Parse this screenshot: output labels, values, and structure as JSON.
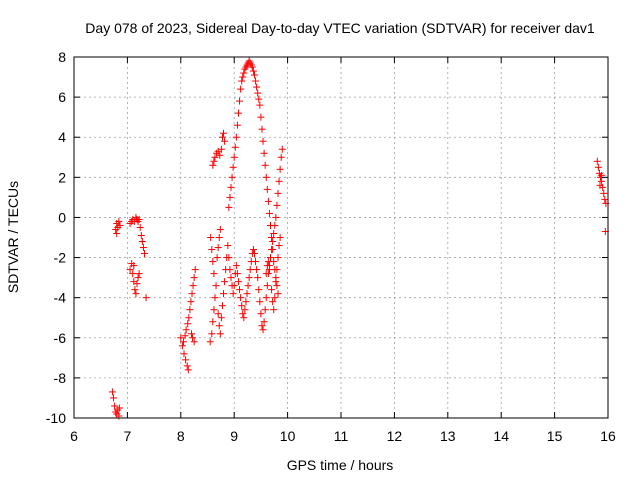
{
  "chart_data": {
    "type": "scatter",
    "title": "Day 078 of 2023, Sidereal Day-to-day VTEC variation (SDTVAR) for receiver dav1",
    "xlabel": "GPS time / hours",
    "ylabel": "SDTVAR / TECUs",
    "xlim": [
      6,
      16
    ],
    "ylim": [
      -10,
      8
    ],
    "xticks": [
      6,
      7,
      8,
      9,
      10,
      11,
      12,
      13,
      14,
      15,
      16
    ],
    "yticks": [
      -10,
      -8,
      -6,
      -4,
      -2,
      0,
      2,
      4,
      6,
      8
    ],
    "grid": true,
    "marker": "+",
    "series": [
      {
        "name": "SDTVAR",
        "color": "#ff0000",
        "points": [
          [
            6.72,
            -8.7
          ],
          [
            6.74,
            -9.0
          ],
          [
            6.76,
            -9.4
          ],
          [
            6.78,
            -9.7
          ],
          [
            6.8,
            -9.8
          ],
          [
            6.82,
            -9.6
          ],
          [
            6.84,
            -9.9
          ],
          [
            6.85,
            -9.5
          ],
          [
            6.78,
            -0.6
          ],
          [
            6.8,
            -0.3
          ],
          [
            6.82,
            -0.5
          ],
          [
            6.84,
            -0.2
          ],
          [
            6.86,
            -0.4
          ],
          [
            6.8,
            -0.8
          ],
          [
            7.05,
            -0.3
          ],
          [
            7.08,
            -0.2
          ],
          [
            7.1,
            -0.1
          ],
          [
            7.13,
            -0.2
          ],
          [
            7.16,
            0.0
          ],
          [
            7.18,
            -0.1
          ],
          [
            7.2,
            -0.2
          ],
          [
            7.22,
            -0.1
          ],
          [
            7.05,
            -2.6
          ],
          [
            7.08,
            -2.3
          ],
          [
            7.1,
            -2.8
          ],
          [
            7.12,
            -3.2
          ],
          [
            7.14,
            -3.6
          ],
          [
            7.16,
            -3.8
          ],
          [
            7.18,
            -3.3
          ],
          [
            7.2,
            -3.0
          ],
          [
            7.22,
            -2.8
          ],
          [
            7.12,
            -2.4
          ],
          [
            7.24,
            -0.5
          ],
          [
            7.26,
            -0.9
          ],
          [
            7.28,
            -1.2
          ],
          [
            7.3,
            -1.5
          ],
          [
            7.32,
            -1.8
          ],
          [
            7.35,
            -4.0
          ],
          [
            8.0,
            -6.0
          ],
          [
            8.03,
            -6.4
          ],
          [
            8.06,
            -6.8
          ],
          [
            8.09,
            -7.1
          ],
          [
            8.12,
            -7.4
          ],
          [
            8.14,
            -7.6
          ],
          [
            8.05,
            -6.2
          ],
          [
            8.08,
            -5.9
          ],
          [
            8.1,
            -5.6
          ],
          [
            8.13,
            -5.3
          ],
          [
            8.15,
            -5.0
          ],
          [
            8.17,
            -4.6
          ],
          [
            8.19,
            -4.2
          ],
          [
            8.21,
            -3.8
          ],
          [
            8.23,
            -3.4
          ],
          [
            8.25,
            -3.0
          ],
          [
            8.27,
            -2.6
          ],
          [
            8.2,
            -5.8
          ],
          [
            8.22,
            -6.0
          ],
          [
            8.25,
            -6.2
          ],
          [
            8.55,
            -6.2
          ],
          [
            8.58,
            -5.8
          ],
          [
            8.6,
            -5.2
          ],
          [
            8.62,
            -4.6
          ],
          [
            8.64,
            -4.0
          ],
          [
            8.66,
            -3.4
          ],
          [
            8.62,
            -2.8
          ],
          [
            8.6,
            -2.2
          ],
          [
            8.58,
            -1.6
          ],
          [
            8.56,
            -1.0
          ],
          [
            8.6,
            2.6
          ],
          [
            8.62,
            2.8
          ],
          [
            8.64,
            3.0
          ],
          [
            8.67,
            3.2
          ],
          [
            8.7,
            3.3
          ],
          [
            8.73,
            3.1
          ],
          [
            8.76,
            3.4
          ],
          [
            8.78,
            4.0
          ],
          [
            8.8,
            4.2
          ],
          [
            8.82,
            3.8
          ],
          [
            8.68,
            -2.0
          ],
          [
            8.7,
            -1.5
          ],
          [
            8.72,
            -1.0
          ],
          [
            8.74,
            -0.6
          ],
          [
            8.7,
            -4.8
          ],
          [
            8.72,
            -5.4
          ],
          [
            8.74,
            -5.8
          ],
          [
            8.76,
            -5.0
          ],
          [
            8.78,
            -4.4
          ],
          [
            8.8,
            -3.8
          ],
          [
            8.82,
            -3.2
          ],
          [
            8.84,
            -2.6
          ],
          [
            8.86,
            -2.0
          ],
          [
            8.88,
            -1.4
          ],
          [
            8.9,
            0.5
          ],
          [
            8.92,
            1.0
          ],
          [
            8.94,
            1.5
          ],
          [
            8.96,
            2.0
          ],
          [
            8.98,
            2.5
          ],
          [
            9.0,
            3.0
          ],
          [
            9.02,
            3.5
          ],
          [
            9.04,
            4.0
          ],
          [
            9.06,
            4.6
          ],
          [
            9.08,
            5.2
          ],
          [
            9.1,
            5.8
          ],
          [
            9.12,
            6.4
          ],
          [
            9.14,
            6.8
          ],
          [
            9.16,
            7.0
          ],
          [
            9.18,
            7.2
          ],
          [
            9.2,
            7.4
          ],
          [
            9.22,
            7.5
          ],
          [
            9.24,
            7.6
          ],
          [
            9.26,
            7.7
          ],
          [
            9.28,
            7.8
          ],
          [
            9.3,
            7.7
          ],
          [
            9.32,
            7.6
          ],
          [
            9.34,
            7.5
          ],
          [
            9.36,
            7.3
          ],
          [
            9.38,
            7.1
          ],
          [
            9.4,
            6.8
          ],
          [
            9.42,
            6.5
          ],
          [
            9.44,
            6.2
          ],
          [
            9.46,
            5.9
          ],
          [
            9.48,
            5.6
          ],
          [
            9.5,
            5.0
          ],
          [
            9.52,
            4.4
          ],
          [
            9.54,
            3.8
          ],
          [
            9.56,
            3.2
          ],
          [
            9.58,
            2.6
          ],
          [
            9.6,
            2.0
          ],
          [
            9.62,
            1.4
          ],
          [
            9.64,
            0.8
          ],
          [
            9.66,
            0.2
          ],
          [
            9.68,
            -0.4
          ],
          [
            9.7,
            -1.0
          ],
          [
            9.72,
            -1.6
          ],
          [
            9.74,
            -2.2
          ],
          [
            9.76,
            -2.6
          ],
          [
            9.78,
            -3.0
          ],
          [
            9.8,
            -3.4
          ],
          [
            9.82,
            -3.8
          ],
          [
            8.9,
            -2.0
          ],
          [
            8.92,
            -2.6
          ],
          [
            8.94,
            -3.0
          ],
          [
            8.96,
            -3.4
          ],
          [
            8.98,
            -3.8
          ],
          [
            9.0,
            -3.4
          ],
          [
            9.02,
            -2.8
          ],
          [
            9.04,
            -2.4
          ],
          [
            9.06,
            -2.8
          ],
          [
            9.08,
            -3.2
          ],
          [
            9.1,
            -3.6
          ],
          [
            9.12,
            -4.0
          ],
          [
            9.14,
            -4.4
          ],
          [
            9.16,
            -4.8
          ],
          [
            9.18,
            -5.0
          ],
          [
            9.2,
            -4.6
          ],
          [
            9.22,
            -4.2
          ],
          [
            9.24,
            -3.8
          ],
          [
            9.26,
            -3.4
          ],
          [
            9.28,
            -3.0
          ],
          [
            9.3,
            -2.6
          ],
          [
            9.32,
            -2.2
          ],
          [
            9.34,
            -1.8
          ],
          [
            9.36,
            -1.6
          ],
          [
            9.38,
            -1.8
          ],
          [
            9.4,
            -2.2
          ],
          [
            9.42,
            -2.6
          ],
          [
            9.44,
            -3.0
          ],
          [
            9.46,
            -3.6
          ],
          [
            9.48,
            -4.2
          ],
          [
            9.5,
            -4.8
          ],
          [
            9.52,
            -5.4
          ],
          [
            9.54,
            -5.6
          ],
          [
            9.56,
            -5.2
          ],
          [
            9.58,
            -4.6
          ],
          [
            9.6,
            -4.0
          ],
          [
            9.62,
            -3.4
          ],
          [
            9.64,
            -2.8
          ],
          [
            9.66,
            -2.4
          ],
          [
            9.68,
            -2.0
          ],
          [
            9.7,
            -1.6
          ],
          [
            9.72,
            -1.2
          ],
          [
            9.74,
            -0.8
          ],
          [
            9.76,
            -0.4
          ],
          [
            9.78,
            0.0
          ],
          [
            9.8,
            0.6
          ],
          [
            9.82,
            1.2
          ],
          [
            9.84,
            1.8
          ],
          [
            9.86,
            2.4
          ],
          [
            9.88,
            3.0
          ],
          [
            9.9,
            3.4
          ],
          [
            9.6,
            -2.8
          ],
          [
            9.62,
            -2.4
          ],
          [
            9.64,
            -2.2
          ],
          [
            9.66,
            -2.6
          ],
          [
            9.7,
            -3.6
          ],
          [
            9.72,
            -4.2
          ],
          [
            9.74,
            -4.6
          ],
          [
            9.76,
            -4.0
          ],
          [
            9.78,
            -3.2
          ],
          [
            9.8,
            -2.6
          ],
          [
            9.82,
            -2.0
          ],
          [
            9.84,
            -1.4
          ],
          [
            9.86,
            -1.0
          ],
          [
            15.8,
            2.8
          ],
          [
            15.82,
            2.5
          ],
          [
            15.84,
            2.2
          ],
          [
            15.86,
            2.0
          ],
          [
            15.88,
            1.8
          ],
          [
            15.9,
            1.5
          ],
          [
            15.92,
            1.2
          ],
          [
            15.94,
            0.9
          ],
          [
            15.96,
            0.7
          ],
          [
            15.85,
            1.6
          ],
          [
            15.88,
            2.1
          ],
          [
            15.95,
            -0.7
          ]
        ]
      }
    ]
  }
}
